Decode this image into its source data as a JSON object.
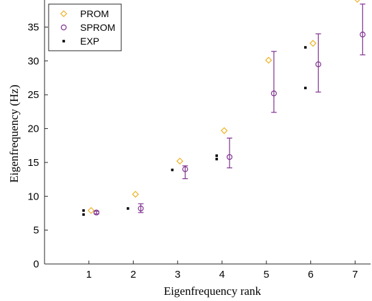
{
  "chart_data": {
    "type": "scatter",
    "title": "",
    "xlabel": "Eigenfrequency rank",
    "ylabel": "Eigenfrequency (Hz)",
    "xlim": [
      0,
      7.35
    ],
    "ylim": [
      0,
      39
    ],
    "xticks": [
      1,
      2,
      3,
      4,
      5,
      6,
      7
    ],
    "yticks": [
      0,
      5,
      10,
      15,
      20,
      25,
      30,
      35
    ],
    "grid": false,
    "legend_position": "top-left",
    "series": [
      {
        "name": "PROM",
        "marker": "diamond",
        "color": "#EDB120",
        "x": [
          1.05,
          2.05,
          3.05,
          4.05,
          5.05,
          6.05,
          7.05
        ],
        "y": [
          7.9,
          10.3,
          15.2,
          19.7,
          30.1,
          32.6,
          39.1
        ]
      },
      {
        "name": "SPROM",
        "marker": "circle",
        "color": "#7E2F8E",
        "x": [
          1.17,
          2.17,
          3.17,
          4.17,
          5.17,
          6.17,
          7.17
        ],
        "y": [
          7.6,
          8.2,
          14.0,
          15.8,
          25.2,
          29.5,
          33.9
        ],
        "err_low": [
          7.4,
          7.6,
          12.6,
          14.2,
          22.4,
          25.4,
          30.9
        ],
        "err_high": [
          7.8,
          8.9,
          14.5,
          18.6,
          31.4,
          34.0,
          38.4
        ]
      },
      {
        "name": "EXP",
        "marker": "square",
        "color": "#000000",
        "x": [
          0.88,
          0.88,
          1.88,
          2.88,
          3.88,
          3.88,
          5.88,
          5.88
        ],
        "y": [
          7.3,
          7.9,
          8.2,
          13.9,
          15.5,
          16.0,
          26.0,
          32.0
        ]
      }
    ]
  }
}
